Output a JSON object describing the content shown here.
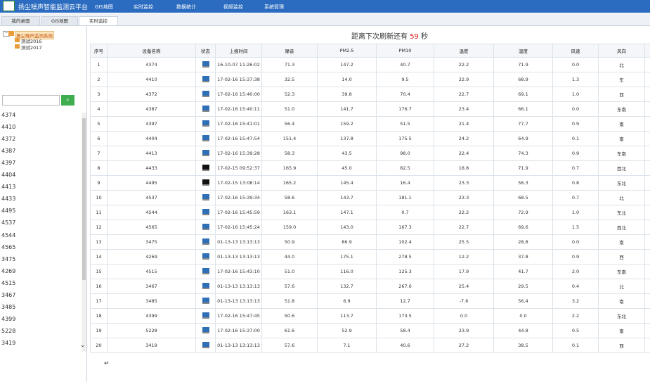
{
  "header": {
    "title": "扬尘噪声智能监测云平台",
    "menu": [
      "GIS地图",
      "实时监控",
      "数据统计",
      "视频监控",
      "系统管理"
    ]
  },
  "tabs": [
    "我的桌面",
    "GIS地图",
    "实时监控"
  ],
  "tree": {
    "root": "扬尘噪声监测系统",
    "children": [
      "测试2016",
      "测试2017"
    ]
  },
  "device_list": [
    "4374",
    "4410",
    "4372",
    "4387",
    "4397",
    "4404",
    "4413",
    "4433",
    "4495",
    "4537",
    "4544",
    "4565",
    "3475",
    "4269",
    "4515",
    "3467",
    "3485",
    "4399",
    "5228",
    "3419"
  ],
  "refresh": {
    "prefix": "距离下次刷新还有",
    "seconds": "59",
    "suffix": "秒"
  },
  "table": {
    "columns": [
      "序号",
      "设备名称",
      "状态",
      "上报时间",
      "噪音",
      "PM2.5",
      "PM10",
      "温度",
      "湿度",
      "风速",
      "风向"
    ],
    "status_colors": [
      "#2f6fb5",
      "#2f6fb5",
      "#2f6fb5",
      "#2f6fb5",
      "#2f6fb5",
      "#2f6fb5",
      "#2f6fb5",
      "#111111",
      "#111111",
      "#2f6fb5",
      "#2f6fb5",
      "#2f6fb5",
      "#2f6fb5",
      "#2f6fb5",
      "#2f6fb5",
      "#2f6fb5",
      "#2f6fb5",
      "#2f6fb5",
      "#2f6fb5",
      "#2f6fb5"
    ],
    "rows": [
      [
        "1",
        "4374",
        "16-10-07 11:26:02",
        "71.3",
        "147.2",
        "40.7",
        "22.2",
        "71.9",
        "0.0",
        "北"
      ],
      [
        "2",
        "4410",
        "17-02-16 15:37:38",
        "32.5",
        "14.0",
        "9.5",
        "22.9",
        "68.9",
        "1.3",
        "东"
      ],
      [
        "3",
        "4372",
        "17-02-16 15:40:00",
        "52.3",
        "39.8",
        "70.4",
        "22.7",
        "69.1",
        "1.0",
        "西"
      ],
      [
        "4",
        "4387",
        "17-02-16 15:40:11",
        "51.0",
        "141.7",
        "176.7",
        "23.4",
        "66.1",
        "0.0",
        "东南"
      ],
      [
        "5",
        "4397",
        "17-02-16 15:41:01",
        "56.4",
        "159.2",
        "51.5",
        "21.4",
        "77.7",
        "0.9",
        "南"
      ],
      [
        "6",
        "4404",
        "17-02-16 15:47:54",
        "151.4",
        "137.8",
        "175.5",
        "24.2",
        "64.9",
        "0.1",
        "南"
      ],
      [
        "7",
        "4413",
        "17-02-16 15:39:28",
        "58.3",
        "43.5",
        "98.0",
        "22.4",
        "74.3",
        "0.9",
        "东南"
      ],
      [
        "8",
        "4433",
        "17-02-15 09:52:37",
        "165.9",
        "45.0",
        "82.5",
        "18.8",
        "71.9",
        "0.7",
        "西北"
      ],
      [
        "9",
        "4495",
        "17-02-15 13:08:14",
        "165.2",
        "145.4",
        "16.4",
        "23.3",
        "56.3",
        "0.8",
        "东北"
      ],
      [
        "10",
        "4537",
        "17-02-16 15:39:34",
        "58.6",
        "143.7",
        "181.1",
        "23.3",
        "68.5",
        "0.7",
        "北"
      ],
      [
        "11",
        "4544",
        "17-02-16 15:45:59",
        "163.1",
        "147.1",
        "0.7",
        "22.2",
        "72.9",
        "1.0",
        "东北"
      ],
      [
        "12",
        "4565",
        "17-02-16 15:45:24",
        "159.0",
        "143.0",
        "167.3",
        "22.7",
        "69.6",
        "1.5",
        "西北"
      ],
      [
        "13",
        "3475",
        "01-13-13 13:13:13",
        "50.9",
        "86.9",
        "102.4",
        "25.5",
        "28.8",
        "0.0",
        "南"
      ],
      [
        "14",
        "4269",
        "01-13-13 13:13:13",
        "44.0",
        "175.1",
        "278.5",
        "12.2",
        "37.8",
        "0.9",
        "西"
      ],
      [
        "15",
        "4515",
        "17-02-16 15:43:10",
        "51.0",
        "116.0",
        "125.3",
        "17.9",
        "41.7",
        "2.0",
        "东南"
      ],
      [
        "16",
        "3467",
        "01-13-13 13:13:13",
        "57.6",
        "132.7",
        "267.6",
        "25.4",
        "29.5",
        "0.4",
        "北"
      ],
      [
        "17",
        "3485",
        "01-13-13 13:13:13",
        "51.8",
        "6.9",
        "12.7",
        "-7.6",
        "56.4",
        "3.2",
        "南"
      ],
      [
        "18",
        "4399",
        "17-02-16 15:47:45",
        "50.6",
        "113.7",
        "173.5",
        "0.0",
        "0.0",
        "2.2",
        "东北"
      ],
      [
        "19",
        "5228",
        "17-02-16 15:37:00",
        "61.6",
        "52.9",
        "58.4",
        "23.9",
        "44.8",
        "0.5",
        "南"
      ],
      [
        "20",
        "3419",
        "01-13-13 13:13:13",
        "57.6",
        "7.1",
        "40.6",
        "27.2",
        "38.5",
        "0.1",
        "西"
      ]
    ]
  },
  "footer_mark": "↵"
}
